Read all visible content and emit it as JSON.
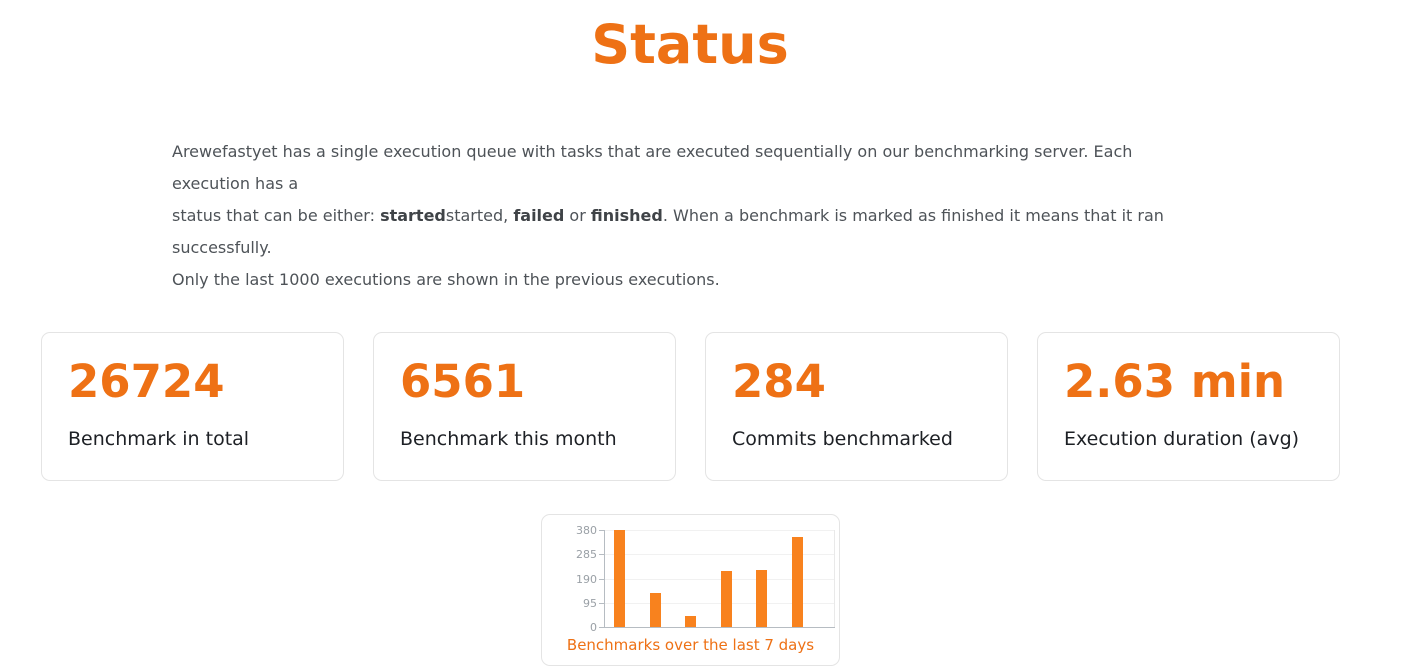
{
  "title": "Status",
  "accent_color": "#ee7115",
  "intro": {
    "lines": [
      [
        {
          "text": "Arewefastyet has a single execution queue with tasks that are executed sequentially on our benchmarking server. Each execution has a",
          "bold": false
        }
      ],
      [
        {
          "text": "status that can be either: ",
          "bold": false
        },
        {
          "text": "started",
          "bold": true
        },
        {
          "text": "started, ",
          "bold": false
        },
        {
          "text": "failed",
          "bold": true
        },
        {
          "text": " or ",
          "bold": false
        },
        {
          "text": "finished",
          "bold": true
        },
        {
          "text": ". When a benchmark is marked as finished it means that it ran successfully.",
          "bold": false
        }
      ],
      [
        {
          "text": "Only the last 1000 executions are shown in the previous executions.",
          "bold": false
        }
      ]
    ]
  },
  "cards": [
    {
      "value": "26724",
      "label": "Benchmark in total"
    },
    {
      "value": "6561",
      "label": "Benchmark this month"
    },
    {
      "value": "284",
      "label": "Commits benchmarked"
    },
    {
      "value": "2.63 min",
      "label": "Execution duration (avg)"
    }
  ],
  "chart_data": {
    "type": "bar",
    "title": "Benchmarks over the last 7 days",
    "categories": [
      "",
      "",
      "",
      "",
      "",
      ""
    ],
    "values": [
      380,
      133,
      42,
      218,
      222,
      352
    ],
    "xlabel": "",
    "ylabel": "",
    "ylim": [
      0,
      380
    ],
    "yticks": [
      0,
      95,
      190,
      285,
      380
    ],
    "x_tick_labels_visible": false,
    "grid": "horizontal-light",
    "legend": "none",
    "bar_color": "#f8821e"
  }
}
